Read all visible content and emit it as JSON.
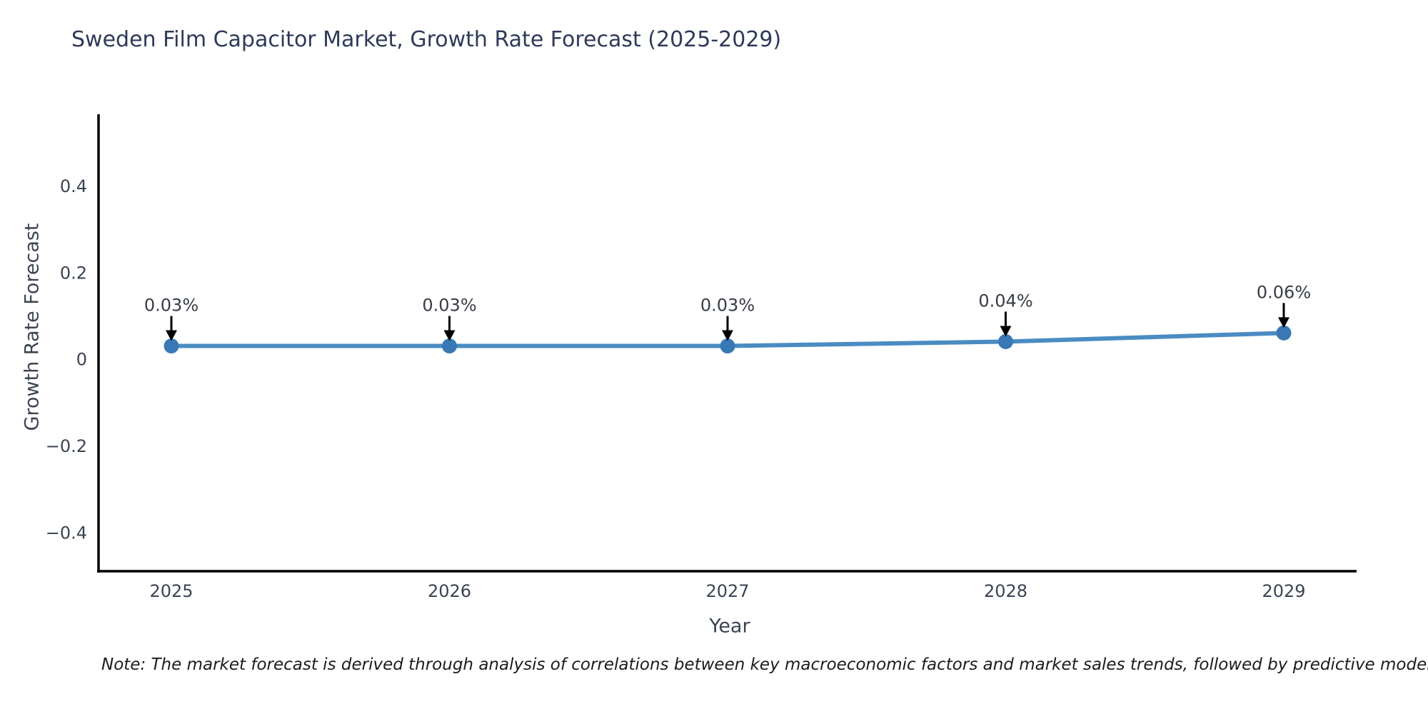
{
  "title": "Sweden Film Capacitor Market, Growth Rate Forecast (2025-2029)",
  "note": "Note: The market forecast is derived through analysis of correlations between key macroeconomic factors and market sales trends, followed by predictive modeling to project future sales.",
  "chart_data": {
    "type": "line",
    "title": "Sweden Film Capacitor Market, Growth Rate Forecast (2025-2029)",
    "xlabel": "Year",
    "ylabel": "Growth Rate Forecast",
    "categories": [
      "2025",
      "2026",
      "2027",
      "2028",
      "2029"
    ],
    "values": [
      0.03,
      0.03,
      0.03,
      0.04,
      0.06
    ],
    "point_labels": [
      "0.03%",
      "0.03%",
      "0.03%",
      "0.04%",
      "0.06%"
    ],
    "yticks": [
      -0.4,
      -0.2,
      0,
      0.2,
      0.4
    ],
    "ytick_labels": [
      "−0.4",
      "−0.2",
      "0",
      "0.2",
      "0.4"
    ],
    "ylim": [
      -0.49,
      0.565
    ],
    "grid": false,
    "legend": "none",
    "annotation_style": "black-down-arrow",
    "colors": {
      "line": "#4a8bc2",
      "marker": "#3879b5",
      "arrow": "#000000",
      "spine": "#000000",
      "title_text": "#2e3a59",
      "tick_text": "#3b4453",
      "annotation_text": "#373d45"
    }
  }
}
